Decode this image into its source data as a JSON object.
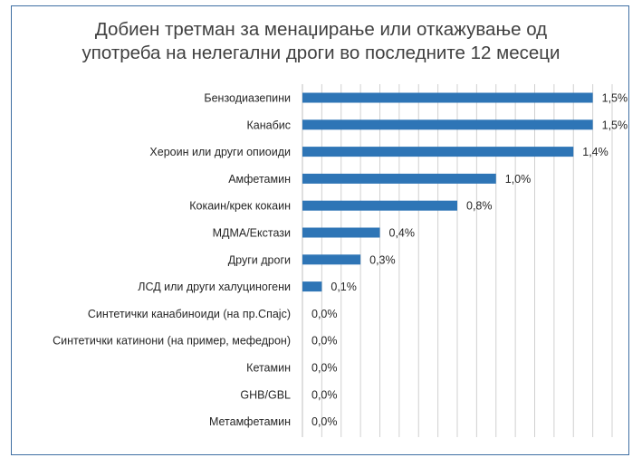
{
  "chart_data": {
    "type": "bar",
    "orientation": "horizontal",
    "title_lines": [
      "Добиен третман за менаџирање или откажување од",
      "употреба на нелегални дроги во последните 12 месеци"
    ],
    "categories": [
      "Бензодиазепини",
      "Канабис",
      "Хероин или други опиоиди",
      "Амфетамин",
      "Кокаин/крек кокаин",
      "МДМА/Екстази",
      "Други дроги",
      "ЛСД или други халуциногени",
      "Синтетички канабиноиди (на пр.Спајс)",
      "Синтетички катинони (на пример, мефедрон)",
      "Кетамин",
      "GHB/GBL",
      "Метамфетамин"
    ],
    "values": [
      1.5,
      1.5,
      1.4,
      1.0,
      0.8,
      0.4,
      0.3,
      0.1,
      0.0,
      0.0,
      0.0,
      0.0,
      0.0
    ],
    "value_labels": [
      "1,5%",
      "1,5%",
      "1,4%",
      "1,0%",
      "0,8%",
      "0,4%",
      "0,3%",
      "0,1%",
      "0,0%",
      "0,0%",
      "0,0%",
      "0,0%",
      "0,0%"
    ],
    "xlim": [
      0,
      1.6
    ],
    "x_gridline_step": 0.1,
    "grid": true,
    "bar_color": "#2e75b6",
    "gridline_color": "#d0d0d0",
    "frame_color": "#3f6fa3"
  }
}
